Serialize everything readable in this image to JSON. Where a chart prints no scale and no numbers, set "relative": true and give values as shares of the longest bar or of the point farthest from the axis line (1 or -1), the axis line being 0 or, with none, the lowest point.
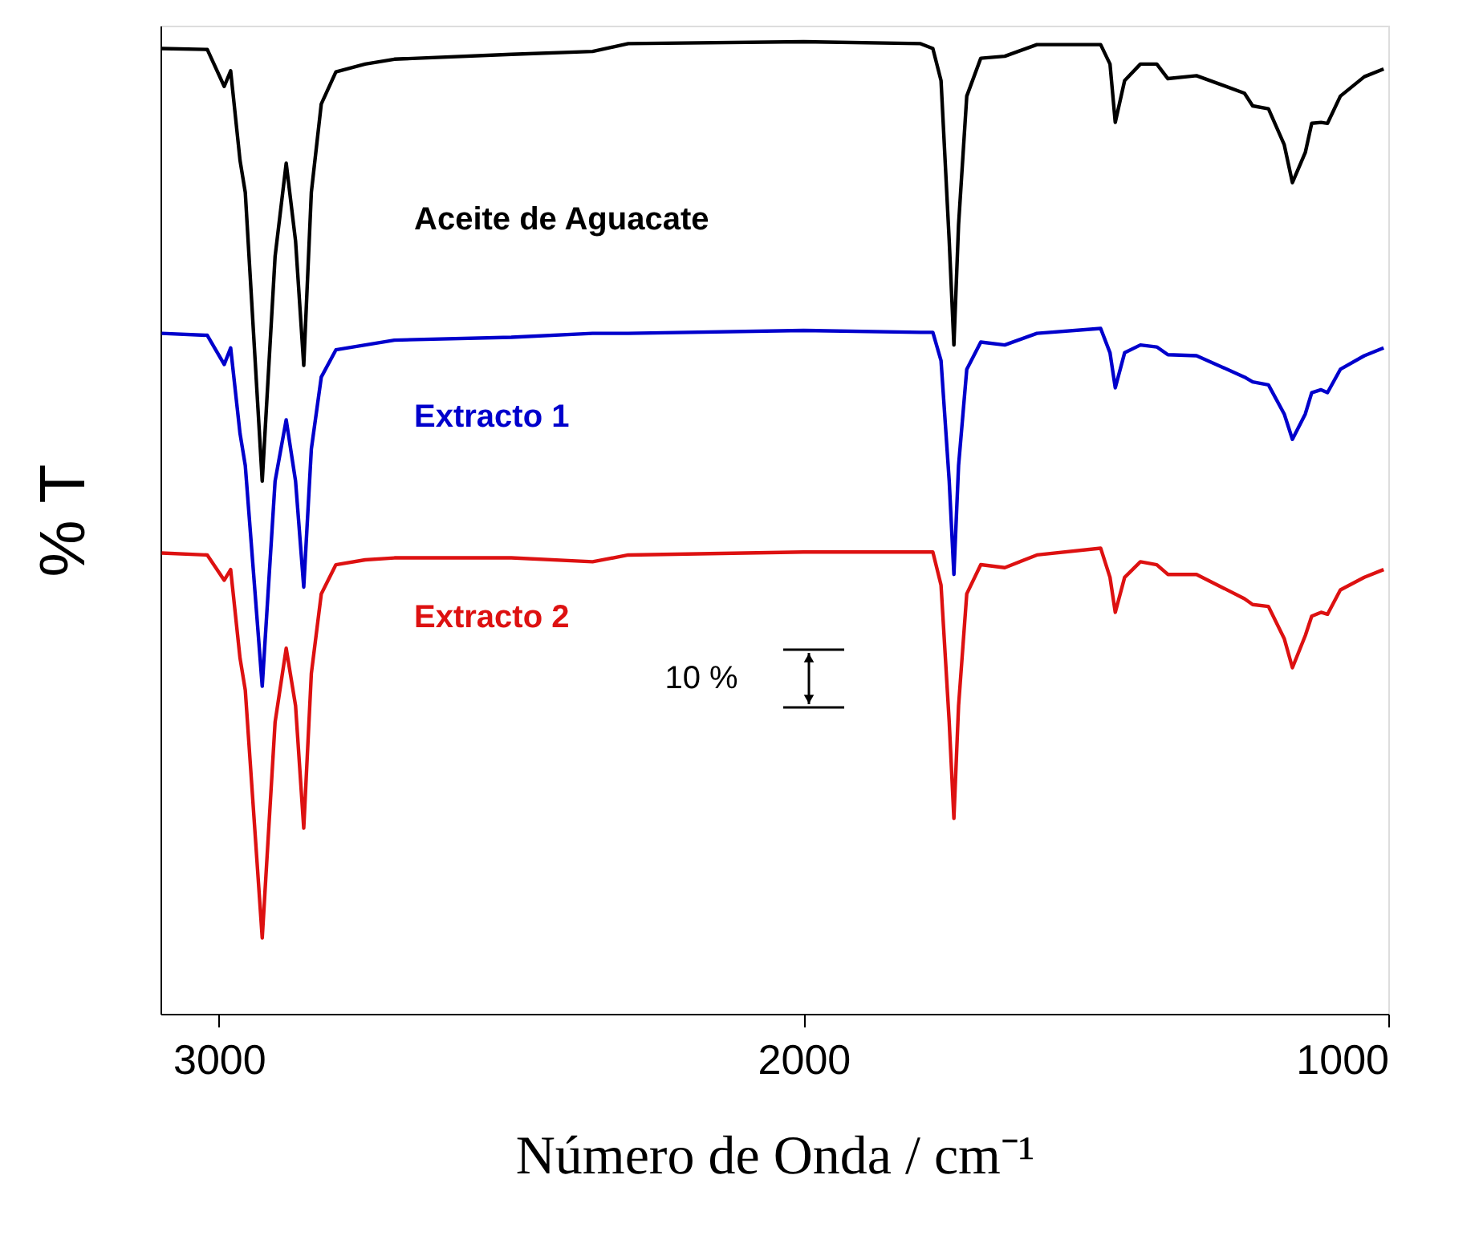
{
  "chart_data": {
    "type": "line",
    "relative": true,
    "xlabel": "Número de Onda / cm⁻¹",
    "ylabel": "% T",
    "xlim": [
      3100,
      1000
    ],
    "xticks": [
      3000,
      2000,
      1000
    ],
    "marker": "none",
    "line_style": "solid",
    "annotations": [
      "10 %"
    ],
    "x": [
      3098,
      3020,
      2991,
      2980,
      2964,
      2955,
      2926,
      2904,
      2885,
      2869,
      2855,
      2842,
      2825,
      2800,
      2750,
      2700,
      2500,
      2361,
      2300,
      2000,
      1800,
      1779,
      1765,
      1751,
      1743,
      1735,
      1721,
      1697,
      1656,
      1601,
      1492,
      1476,
      1467,
      1451,
      1424,
      1396,
      1377,
      1328,
      1246,
      1232,
      1205,
      1178,
      1164,
      1142,
      1131,
      1115,
      1104,
      1082,
      1041,
      1008
    ],
    "series": [
      {
        "name": "Aceite de Aguacate",
        "color": "#000000",
        "values": [
          0.993,
          0.992,
          0.954,
          0.97,
          0.878,
          0.845,
          0.548,
          0.779,
          0.875,
          0.795,
          0.667,
          0.845,
          0.936,
          0.969,
          0.977,
          0.982,
          0.987,
          0.99,
          0.998,
          1.0,
          0.998,
          0.993,
          0.96,
          0.795,
          0.688,
          0.812,
          0.944,
          0.983,
          0.985,
          0.997,
          0.997,
          0.977,
          0.917,
          0.96,
          0.977,
          0.977,
          0.962,
          0.965,
          0.947,
          0.934,
          0.931,
          0.894,
          0.855,
          0.886,
          0.916,
          0.917,
          0.916,
          0.944,
          0.964,
          0.972
        ]
      },
      {
        "name": "Extracto 1",
        "color": "#0000cc",
        "values": [
          0.7,
          0.698,
          0.668,
          0.685,
          0.597,
          0.564,
          0.337,
          0.548,
          0.611,
          0.548,
          0.439,
          0.581,
          0.655,
          0.683,
          0.688,
          0.693,
          0.696,
          0.7,
          0.7,
          0.703,
          0.701,
          0.701,
          0.672,
          0.548,
          0.452,
          0.564,
          0.663,
          0.691,
          0.688,
          0.7,
          0.705,
          0.68,
          0.644,
          0.68,
          0.688,
          0.686,
          0.678,
          0.677,
          0.655,
          0.65,
          0.647,
          0.617,
          0.591,
          0.617,
          0.639,
          0.642,
          0.639,
          0.663,
          0.677,
          0.685
        ]
      },
      {
        "name": "Extracto 2",
        "color": "#dd1111",
        "values": [
          0.474,
          0.472,
          0.446,
          0.457,
          0.366,
          0.333,
          0.078,
          0.3,
          0.376,
          0.317,
          0.191,
          0.35,
          0.432,
          0.462,
          0.467,
          0.469,
          0.469,
          0.465,
          0.472,
          0.475,
          0.475,
          0.475,
          0.441,
          0.3,
          0.201,
          0.317,
          0.432,
          0.462,
          0.459,
          0.472,
          0.479,
          0.449,
          0.413,
          0.449,
          0.465,
          0.462,
          0.452,
          0.452,
          0.427,
          0.421,
          0.419,
          0.386,
          0.356,
          0.389,
          0.409,
          0.413,
          0.411,
          0.436,
          0.449,
          0.457
        ]
      }
    ]
  }
}
